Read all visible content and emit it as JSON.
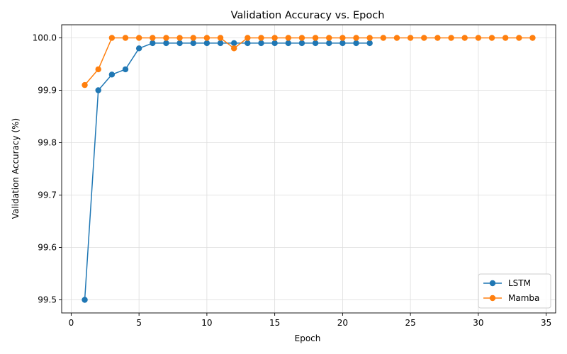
{
  "chart_data": {
    "type": "line",
    "title": "Validation Accuracy vs. Epoch",
    "xlabel": "Epoch",
    "ylabel": "Validation Accuracy (%)",
    "xlim": [
      -0.7,
      35.7
    ],
    "ylim": [
      99.475,
      100.025
    ],
    "xticks": [
      0,
      5,
      10,
      15,
      20,
      25,
      30,
      35
    ],
    "yticks": [
      99.5,
      99.6,
      99.7,
      99.8,
      99.9,
      100.0
    ],
    "ytick_labels": [
      "99.5",
      "99.6",
      "99.7",
      "99.8",
      "99.9",
      "100.0"
    ],
    "grid": true,
    "legend_position": "lower-right",
    "series": [
      {
        "name": "LSTM",
        "color": "#1f77b4",
        "marker": "circle",
        "x": [
          1,
          2,
          3,
          4,
          5,
          6,
          7,
          8,
          9,
          10,
          11,
          12,
          13,
          14,
          15,
          16,
          17,
          18,
          19,
          20,
          21,
          22
        ],
        "y": [
          99.5,
          99.9,
          99.93,
          99.94,
          99.98,
          99.99,
          99.99,
          99.99,
          99.99,
          99.99,
          99.99,
          99.99,
          99.99,
          99.99,
          99.99,
          99.99,
          99.99,
          99.99,
          99.99,
          99.99,
          99.99,
          99.99
        ]
      },
      {
        "name": "Mamba",
        "color": "#ff7f0e",
        "marker": "circle",
        "x": [
          1,
          2,
          3,
          4,
          5,
          6,
          7,
          8,
          9,
          10,
          11,
          12,
          13,
          14,
          15,
          16,
          17,
          18,
          19,
          20,
          21,
          22,
          23,
          24,
          25,
          26,
          27,
          28,
          29,
          30,
          31,
          32,
          33,
          34
        ],
        "y": [
          99.91,
          99.94,
          100.0,
          100.0,
          100.0,
          100.0,
          100.0,
          100.0,
          100.0,
          100.0,
          100.0,
          99.98,
          100.0,
          100.0,
          100.0,
          100.0,
          100.0,
          100.0,
          100.0,
          100.0,
          100.0,
          100.0,
          100.0,
          100.0,
          100.0,
          100.0,
          100.0,
          100.0,
          100.0,
          100.0,
          100.0,
          100.0,
          100.0,
          100.0
        ]
      }
    ]
  }
}
